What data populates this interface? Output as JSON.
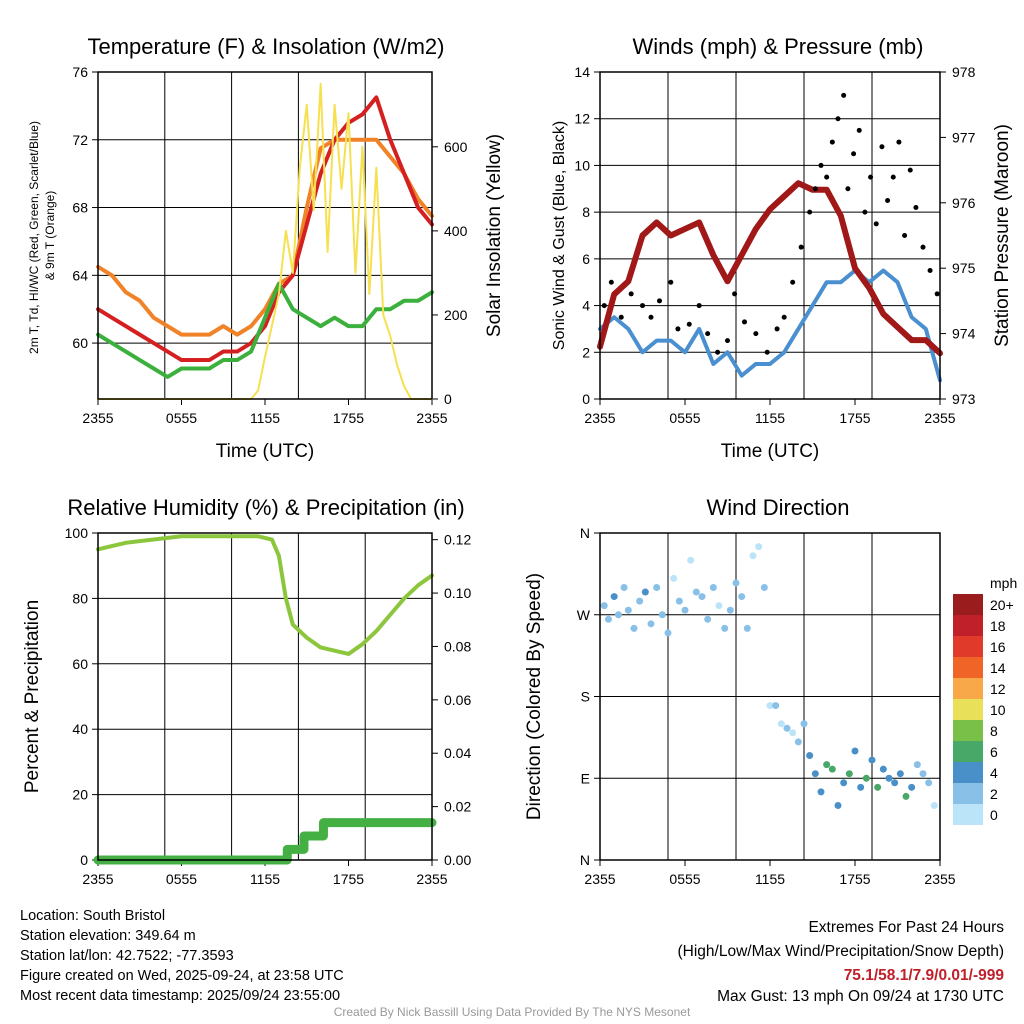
{
  "chart_data": [
    {
      "type": "line",
      "title": "Temperature (F) & Insolation (W/m2)",
      "xlabel": "Time (UTC)",
      "ylabel": "2m T, Td, HI/WC (Red, Green, Scarlet/Blue) & 9m T (Orange)",
      "ylabel_right": "Solar Insolation (Yellow)",
      "xticks": [
        "2355",
        "0555",
        "1155",
        "1755",
        "2355"
      ],
      "yticks": [
        "60",
        "64",
        "68",
        "72",
        "76"
      ],
      "yticks_right": [
        "0",
        "200",
        "400",
        "600"
      ],
      "ylim": [
        56.7,
        76
      ],
      "ylim_right": [
        0,
        778
      ],
      "series": [
        {
          "name": "9m T",
          "color": "#f08228",
          "axis": "left",
          "x": [
            0,
            1,
            2,
            3,
            4,
            5,
            6,
            7,
            8,
            9,
            10,
            11,
            12,
            13,
            14,
            15,
            16,
            17,
            18,
            19,
            20,
            21,
            22,
            23,
            24
          ],
          "y": [
            64.5,
            64,
            63,
            62.5,
            61.5,
            61,
            60.5,
            60.5,
            60.5,
            61,
            60.5,
            61,
            62,
            63.5,
            64,
            68,
            71.5,
            72,
            72,
            72,
            72,
            71,
            70,
            68.5,
            67.5
          ]
        },
        {
          "name": "2m T",
          "color": "#d42020",
          "axis": "left",
          "x": [
            0,
            1,
            2,
            3,
            4,
            5,
            6,
            7,
            8,
            9,
            10,
            11,
            12,
            13,
            14,
            15,
            16,
            17,
            18,
            19,
            20,
            21,
            22,
            23,
            24
          ],
          "y": [
            62,
            61.5,
            61,
            60.5,
            60,
            59.5,
            59,
            59,
            59,
            59.5,
            59.5,
            60,
            61,
            63,
            64,
            67,
            70,
            72,
            73,
            73.5,
            74.5,
            72,
            70,
            68,
            67
          ]
        },
        {
          "name": "Td",
          "color": "#3cb03c",
          "axis": "left",
          "x": [
            0,
            1,
            2,
            3,
            4,
            5,
            6,
            7,
            8,
            9,
            10,
            11,
            12,
            13,
            14,
            15,
            16,
            17,
            18,
            19,
            20,
            21,
            22,
            23,
            24
          ],
          "y": [
            60.5,
            60,
            59.5,
            59,
            58.5,
            58,
            58.5,
            58.5,
            58.5,
            59,
            59,
            59.5,
            61.5,
            63.5,
            62,
            61.5,
            61,
            61.5,
            61,
            61,
            62,
            62,
            62.5,
            62.5,
            63
          ]
        },
        {
          "name": "Solar Insolation",
          "color": "#f5e050",
          "axis": "right",
          "x": [
            0,
            11,
            11.5,
            12,
            13,
            13.5,
            14,
            14.5,
            15,
            15.5,
            16,
            16.5,
            17,
            17.5,
            18,
            18.5,
            19,
            19.5,
            20,
            20.5,
            21,
            21.5,
            22,
            22.5,
            24
          ],
          "y": [
            0,
            0,
            20,
            100,
            250,
            400,
            300,
            550,
            700,
            450,
            750,
            350,
            700,
            500,
            680,
            300,
            600,
            250,
            550,
            200,
            150,
            80,
            30,
            0,
            0
          ]
        }
      ]
    },
    {
      "type": "line",
      "title": "Winds (mph) & Pressure (mb)",
      "xlabel": "Time (UTC)",
      "ylabel": "Sonic Wind & Gust (Blue, Black)",
      "ylabel_right": "Station Pressure (Maroon)",
      "xticks": [
        "2355",
        "0555",
        "1155",
        "1755",
        "2355"
      ],
      "yticks": [
        "0",
        "2",
        "4",
        "6",
        "8",
        "10",
        "12",
        "14"
      ],
      "yticks_right": [
        "973",
        "974",
        "975",
        "976",
        "977",
        "978"
      ],
      "ylim": [
        0,
        14
      ],
      "ylim_right": [
        973,
        978
      ],
      "series": [
        {
          "name": "Sonic Wind",
          "color": "#4a90d0",
          "axis": "left",
          "x": [
            0,
            1,
            2,
            3,
            4,
            5,
            6,
            7,
            8,
            9,
            10,
            11,
            12,
            13,
            14,
            15,
            16,
            17,
            18,
            19,
            20,
            21,
            22,
            23,
            24
          ],
          "y": [
            3,
            3.5,
            3,
            2,
            2.5,
            2.5,
            2,
            3,
            1.5,
            2,
            1,
            1.5,
            1.5,
            2,
            3,
            4,
            5,
            5,
            5.5,
            5,
            5.5,
            5,
            3.5,
            3,
            0.8
          ]
        },
        {
          "name": "Station Pressure",
          "color": "#a01818",
          "axis": "right",
          "x": [
            0,
            1,
            2,
            3,
            4,
            5,
            6,
            7,
            8,
            9,
            10,
            11,
            12,
            13,
            14,
            15,
            16,
            17,
            18,
            19,
            20,
            21,
            22,
            23,
            24
          ],
          "y": [
            973.8,
            974.6,
            974.8,
            975.5,
            975.7,
            975.5,
            975.6,
            975.7,
            975.2,
            974.8,
            975.2,
            975.6,
            975.9,
            976.1,
            976.3,
            976.2,
            976.2,
            975.8,
            975,
            974.7,
            974.3,
            974.1,
            973.9,
            973.9,
            973.7
          ]
        },
        {
          "name": "Gust",
          "color": "#000000",
          "axis": "left",
          "type": "scatter",
          "x": [
            0.3,
            0.8,
            1.5,
            2.2,
            3,
            3.6,
            4.2,
            5,
            5.5,
            6.3,
            7,
            7.6,
            8.3,
            9,
            9.5,
            10.2,
            11,
            11.8,
            12.5,
            13,
            13.6,
            14.2,
            14.8,
            15.2,
            15.6,
            16,
            16.4,
            16.8,
            17.2,
            17.5,
            17.9,
            18.3,
            18.7,
            19.1,
            19.5,
            19.9,
            20.3,
            20.7,
            21.1,
            21.5,
            21.9,
            22.3,
            22.8,
            23.3,
            23.8
          ],
          "y": [
            4,
            5,
            3.5,
            4.5,
            4,
            3.5,
            4.2,
            5,
            3,
            3.2,
            4,
            2.8,
            2,
            2.5,
            4.5,
            3.3,
            2.8,
            2,
            3,
            3.5,
            5,
            6.5,
            8,
            9,
            10,
            9.5,
            11,
            12,
            13,
            9,
            10.5,
            11.5,
            8,
            9.5,
            7.5,
            10.8,
            8.5,
            9.5,
            11,
            7,
            9.8,
            8.2,
            6.5,
            5.5,
            4.5
          ]
        }
      ]
    },
    {
      "type": "line",
      "title": "Relative Humidity (%) & Precipitation (in)",
      "xlabel": "",
      "ylabel": "Percent & Precipitation",
      "xticks": [
        "2355",
        "0555",
        "1155",
        "1755",
        "2355"
      ],
      "yticks": [
        "0",
        "20",
        "40",
        "60",
        "80",
        "100"
      ],
      "yticks_right": [
        "0.00",
        "0.02",
        "0.04",
        "0.06",
        "0.08",
        "0.10",
        "0.12"
      ],
      "ylim": [
        0,
        100
      ],
      "ylim_right": [
        0,
        0.1225
      ],
      "series": [
        {
          "name": "Relative Humidity",
          "color": "#8cc63c",
          "axis": "left",
          "x": [
            0,
            2,
            4,
            6,
            8,
            10,
            11.5,
            12.5,
            13,
            13.5,
            14,
            15,
            16,
            17,
            18,
            19,
            20,
            21,
            22,
            23,
            24
          ],
          "y": [
            95,
            97,
            98,
            99,
            99,
            99,
            99,
            98,
            93,
            80,
            72,
            68,
            65,
            64,
            63,
            66,
            70,
            75,
            80,
            84,
            87
          ]
        },
        {
          "name": "Precipitation",
          "color": "#44b044",
          "axis": "right",
          "x": [
            0,
            13.6,
            13.6,
            14.8,
            14.8,
            16.2,
            16.2,
            24
          ],
          "y": [
            0,
            0,
            0.004,
            0.004,
            0.009,
            0.009,
            0.014,
            0.014
          ]
        }
      ]
    },
    {
      "type": "scatter",
      "title": "Wind Direction",
      "ylabel": "Direction (Colored By Speed)",
      "xticks": [
        "2355",
        "0555",
        "1155",
        "1755",
        "2355"
      ],
      "yticks": [
        "N",
        "E",
        "S",
        "W",
        "N"
      ],
      "ylim": [
        0,
        360
      ],
      "legend": {
        "title": "mph",
        "labels": [
          "20+",
          "18",
          "16",
          "14",
          "12",
          "10",
          "8",
          "6",
          "4",
          "2",
          "0"
        ],
        "colors": [
          "#9b1c1c",
          "#c0202a",
          "#e03a2a",
          "#f06428",
          "#f8a848",
          "#e8e058",
          "#78c048",
          "#48a868",
          "#4a90c8",
          "#88c0e8",
          "#bce4f8"
        ],
        "placement": "right"
      },
      "points": {
        "t": [
          0.3,
          0.6,
          1,
          1.3,
          1.7,
          2,
          2.4,
          2.8,
          3.2,
          3.6,
          4,
          4.4,
          4.8,
          5.2,
          5.6,
          6,
          6.4,
          6.8,
          7.2,
          7.6,
          8,
          8.4,
          8.8,
          9.2,
          9.6,
          10,
          10.4,
          10.8,
          11.2,
          11.6,
          12,
          12.4,
          12.8,
          13.2,
          13.6,
          14,
          14.4,
          14.8,
          15.2,
          15.6,
          16,
          16.4,
          16.8,
          17.2,
          17.6,
          18,
          18.4,
          18.8,
          19.2,
          19.6,
          20,
          20.4,
          20.8,
          21.2,
          21.6,
          22,
          22.4,
          22.8,
          23.2,
          23.6
        ],
        "deg": [
          280,
          265,
          290,
          270,
          300,
          275,
          255,
          285,
          295,
          260,
          300,
          270,
          250,
          310,
          285,
          275,
          330,
          295,
          290,
          265,
          300,
          280,
          255,
          275,
          305,
          290,
          255,
          335,
          345,
          300,
          170,
          170,
          150,
          145,
          140,
          130,
          150,
          115,
          95,
          75,
          105,
          100,
          60,
          85,
          95,
          120,
          80,
          90,
          110,
          80,
          100,
          90,
          85,
          95,
          70,
          80,
          105,
          95,
          85,
          60
        ],
        "speed": [
          3,
          3,
          4,
          2,
          3,
          2,
          3,
          2,
          4,
          2,
          2,
          3,
          2,
          1,
          3,
          2,
          1,
          2,
          3,
          2,
          2,
          1,
          3,
          2,
          2,
          3,
          2,
          1,
          1,
          2,
          1,
          2,
          1,
          2,
          1,
          2,
          3,
          4,
          5,
          4,
          6,
          6,
          5,
          4,
          6,
          4,
          5,
          6,
          4,
          6,
          5,
          4,
          4,
          5,
          6,
          4,
          3,
          3,
          2,
          1
        ]
      }
    }
  ],
  "footer": {
    "location": "Location: South Bristol",
    "elevation": "Station elevation: 349.64 m",
    "latlon": "Station lat/lon: 42.7522; -77.3593",
    "created": "Figure created on Wed, 2025-09-24, at 23:58 UTC",
    "recent": "Most recent data timestamp: 2025/09/24 23:55:00",
    "extremes_title": "Extremes For Past 24 Hours",
    "extremes_sub": "(High/Low/Max Wind/Precipitation/Snow Depth)",
    "extremes_values": "75.1/58.1/7.9/0.01/-999",
    "max_gust": "Max Gust: 13 mph On 09/24 at 1730 UTC",
    "credit": "Created By Nick Bassill Using Data Provided By The NYS Mesonet"
  },
  "colors": {
    "extremes": "#c0202a",
    "credit": "#999999"
  }
}
